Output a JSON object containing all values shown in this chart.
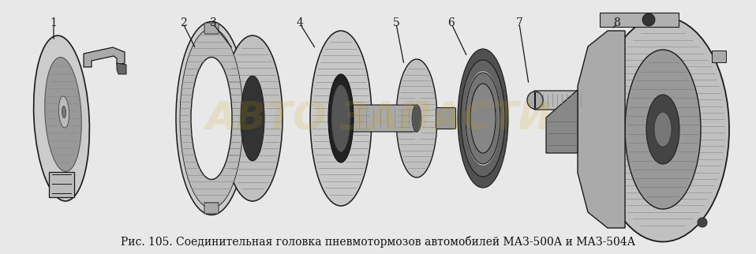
{
  "background_color": "#e8e8e8",
  "caption": "Рис. 105. Соединительная головка пневмотормозов автомобилей МАЗ-500А и МАЗ-504А",
  "caption_fontsize": 10,
  "fig_width": 9.58,
  "fig_height": 3.22,
  "dpi": 100,
  "watermark_text": "АВТО ЗАПАСТИ",
  "watermark_alpha": 0.15,
  "watermark_fontsize": 36,
  "watermark_color": "#c8a000"
}
